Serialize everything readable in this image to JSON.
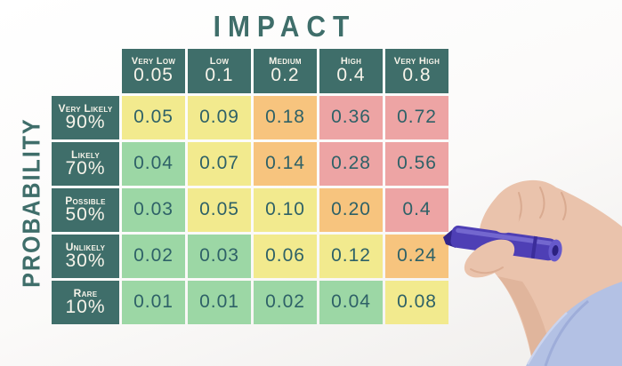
{
  "matrix": {
    "title": "IMPACT",
    "y_axis_label": "PROBABILITY",
    "columns": [
      {
        "label": "Very Low",
        "value": "0.05"
      },
      {
        "label": "Low",
        "value": "0.1"
      },
      {
        "label": "Medium",
        "value": "0.2"
      },
      {
        "label": "High",
        "value": "0.4"
      },
      {
        "label": "Very High",
        "value": "0.8"
      }
    ],
    "rows": [
      {
        "label": "Very Likely",
        "percent": "90%",
        "cells": [
          {
            "value": "0.05",
            "level": "yellow"
          },
          {
            "value": "0.09",
            "level": "yellow"
          },
          {
            "value": "0.18",
            "level": "orange"
          },
          {
            "value": "0.36",
            "level": "red"
          },
          {
            "value": "0.72",
            "level": "red"
          }
        ]
      },
      {
        "label": "Likely",
        "percent": "70%",
        "cells": [
          {
            "value": "0.04",
            "level": "green"
          },
          {
            "value": "0.07",
            "level": "yellow"
          },
          {
            "value": "0.14",
            "level": "orange"
          },
          {
            "value": "0.28",
            "level": "red"
          },
          {
            "value": "0.56",
            "level": "red"
          }
        ]
      },
      {
        "label": "Possible",
        "percent": "50%",
        "cells": [
          {
            "value": "0.03",
            "level": "green"
          },
          {
            "value": "0.05",
            "level": "yellow"
          },
          {
            "value": "0.10",
            "level": "yellow"
          },
          {
            "value": "0.20",
            "level": "orange"
          },
          {
            "value": "0.4",
            "level": "red"
          }
        ]
      },
      {
        "label": "Unlikely",
        "percent": "30%",
        "cells": [
          {
            "value": "0.02",
            "level": "green"
          },
          {
            "value": "0.03",
            "level": "green"
          },
          {
            "value": "0.06",
            "level": "yellow"
          },
          {
            "value": "0.12",
            "level": "yellow"
          },
          {
            "value": "0.24",
            "level": "orange"
          }
        ]
      },
      {
        "label": "Rare",
        "percent": "10%",
        "cells": [
          {
            "value": "0.01",
            "level": "green"
          },
          {
            "value": "0.01",
            "level": "green"
          },
          {
            "value": "0.02",
            "level": "green"
          },
          {
            "value": "0.04",
            "level": "green"
          },
          {
            "value": "0.08",
            "level": "yellow"
          }
        ]
      }
    ]
  },
  "chart_data": {
    "type": "heatmap",
    "title": "IMPACT",
    "xlabel": "IMPACT",
    "ylabel": "PROBABILITY",
    "x_categories": [
      "Very Low 0.05",
      "Low 0.1",
      "Medium 0.2",
      "High 0.4",
      "Very High 0.8"
    ],
    "y_categories": [
      "Very Likely 90%",
      "Likely 70%",
      "Possible 50%",
      "Unlikely 30%",
      "Rare 10%"
    ],
    "impact_weights": [
      0.05,
      0.1,
      0.2,
      0.4,
      0.8
    ],
    "probability_weights": [
      0.9,
      0.7,
      0.5,
      0.3,
      0.1
    ],
    "values": [
      [
        0.05,
        0.09,
        0.18,
        0.36,
        0.72
      ],
      [
        0.04,
        0.07,
        0.14,
        0.28,
        0.56
      ],
      [
        0.03,
        0.05,
        0.1,
        0.2,
        0.4
      ],
      [
        0.02,
        0.03,
        0.06,
        0.12,
        0.24
      ],
      [
        0.01,
        0.01,
        0.02,
        0.04,
        0.08
      ]
    ],
    "cell_colors": [
      [
        "yellow",
        "yellow",
        "orange",
        "red",
        "red"
      ],
      [
        "green",
        "yellow",
        "orange",
        "red",
        "red"
      ],
      [
        "green",
        "yellow",
        "yellow",
        "orange",
        "red"
      ],
      [
        "green",
        "green",
        "yellow",
        "yellow",
        "orange"
      ],
      [
        "green",
        "green",
        "green",
        "green",
        "yellow"
      ]
    ],
    "legend": "none",
    "grid": "white gaps between cells"
  },
  "colors": {
    "teal": "#3f6e6a",
    "teal-text": "#2e6167",
    "cream": "#f7f4ea",
    "yellow": "#f2ea8e",
    "green": "#9cd7a5",
    "orange": "#f7c47e",
    "red": "#eda4a4",
    "skin": "#eac3ac",
    "skin-shadow": "#d5a58a",
    "marker": "#4e3fb5",
    "marker-dark": "#32258a",
    "sleeve": "#b3c1e4"
  },
  "scene": {
    "objects": [
      "risk-matrix",
      "hand-holding-purple-marker",
      "light-blue-shirt-sleeve"
    ]
  }
}
